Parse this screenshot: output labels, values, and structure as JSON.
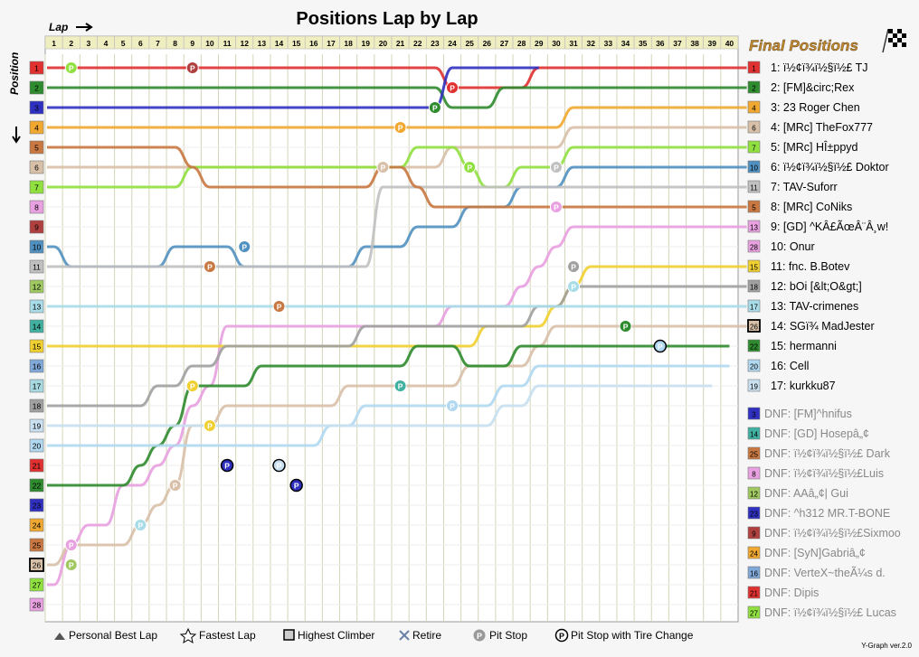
{
  "chart_data": {
    "type": "line",
    "title": "Positions Lap by Lap",
    "xlabel": "Lap",
    "ylabel": "Position",
    "laps": [
      1,
      2,
      3,
      4,
      5,
      6,
      7,
      8,
      9,
      10,
      11,
      12,
      13,
      14,
      15,
      16,
      17,
      18,
      19,
      20,
      21,
      22,
      23,
      24,
      25,
      26,
      27,
      28,
      29,
      30,
      31,
      32,
      33,
      34,
      35,
      36,
      37,
      38,
      39,
      40
    ],
    "grid_positions": [
      1,
      2,
      3,
      4,
      5,
      6,
      7,
      8,
      9,
      10,
      11,
      12,
      13,
      14,
      15,
      16,
      17,
      18,
      19,
      20,
      21,
      22,
      23,
      24,
      25,
      26,
      27,
      28
    ],
    "position_colors": [
      "#e03030",
      "#2e8b2e",
      "#3030c0",
      "#f0a830",
      "#c87840",
      "#d8c0a8",
      "#90e040",
      "#e8a0e0",
      "#b04040",
      "#5090c0",
      "#c0c0c0",
      "#a0c860",
      "#a8dce8",
      "#40b0a0",
      "#f0d030",
      "#80a8d8",
      "#a8d8e0",
      "#a0a0a0",
      "#c8e0f0",
      "#b0d8f0",
      "#e03030",
      "#2e8b2e",
      "#3030c0",
      "#f0a830",
      "#c87840",
      "#d8c0a8",
      "#90e040",
      "#e8a0e0"
    ],
    "final_title": "Final Positions",
    "final_positions": [
      {
        "pos": "1",
        "label": "1: ï½¢ï¾ï½§ï½£ TJ",
        "color": "#e03030"
      },
      {
        "pos": "2",
        "label": "2: [FM]&circ;Rex",
        "color": "#2e8b2e"
      },
      {
        "pos": "4",
        "label": "3: 23 Roger Chen",
        "color": "#f0a830"
      },
      {
        "pos": "6",
        "label": "4: [MRc] TheFox777",
        "color": "#d8c0a8"
      },
      {
        "pos": "7",
        "label": "5: [MRc] HÎ±ppyd",
        "color": "#90e040"
      },
      {
        "pos": "10",
        "label": "6: ï½¢ï¾ï½§ï½£ Doktor",
        "color": "#5090c0"
      },
      {
        "pos": "11",
        "label": "7: TAV-Suforr",
        "color": "#c0c0c0"
      },
      {
        "pos": "5",
        "label": "8: [MRc] CoNiks",
        "color": "#c87840"
      },
      {
        "pos": "13",
        "label": "9: [GD] ^KÂ£ÃœÂ¨Â¸w!",
        "color": "#e8a0e0"
      },
      {
        "pos": "28",
        "label": "10: Onur",
        "color": "#e8a0e0"
      },
      {
        "pos": "15",
        "label": "11: fnc. B.Botev",
        "color": "#f0d030"
      },
      {
        "pos": "18",
        "label": "12: bOi [&lt;O&gt;]",
        "color": "#a0a0a0"
      },
      {
        "pos": "17",
        "label": "13: TAV-crimenes",
        "color": "#a8dce8"
      },
      {
        "pos": "26",
        "label": "14: SGï¾ MadJester",
        "color": "#d8c0a8"
      },
      {
        "pos": "22",
        "label": "15: hermanni",
        "color": "#2e8b2e"
      },
      {
        "pos": "20",
        "label": "16: Cell",
        "color": "#b0d8f0"
      },
      {
        "pos": "19",
        "label": "17: kurkku87",
        "color": "#c8e0f0"
      }
    ],
    "dnf": [
      {
        "pos": "3",
        "label": "DNF: [FM]^hnifus",
        "color": "#3030c0"
      },
      {
        "pos": "14",
        "label": "DNF: [GD] Hosepâ„¢",
        "color": "#40b0a0"
      },
      {
        "pos": "25",
        "label": "DNF: ï½¢ï¾ï½§ï½£ Dark",
        "color": "#c87840"
      },
      {
        "pos": "8",
        "label": "DNF: ï½¢ï¾ï½§ï½£Luis",
        "color": "#e8a0e0"
      },
      {
        "pos": "12",
        "label": "DNF: AAâ„¢| Gui",
        "color": "#a0c860"
      },
      {
        "pos": "23",
        "label": "DNF: ^h312 MR.T-BONE",
        "color": "#3030c0"
      },
      {
        "pos": "9",
        "label": "DNF: ï½¢ï¾ï½§ï½£Sixmoo",
        "color": "#b04040"
      },
      {
        "pos": "24",
        "label": "DNF: [SyN]Gabriâ„¢",
        "color": "#f0a830"
      },
      {
        "pos": "16",
        "label": "DNF: VerteX~theÃ¼s d.",
        "color": "#80a8d8"
      },
      {
        "pos": "21",
        "label": "DNF: Dipis",
        "color": "#e03030"
      },
      {
        "pos": "27",
        "label": "DNF: ï½¢ï¾ï½§ï½£ Lucas",
        "color": "#90e040"
      }
    ],
    "series": [
      {
        "color": "#e03030",
        "positions": [
          1,
          1,
          1,
          1,
          1,
          1,
          1,
          1,
          1,
          1,
          1,
          1,
          1,
          1,
          1,
          1,
          1,
          1,
          1,
          1,
          1,
          1,
          1,
          2,
          2,
          2,
          2,
          2,
          1,
          1,
          1,
          1,
          1,
          1,
          1,
          1,
          1,
          1,
          1,
          1,
          1
        ]
      },
      {
        "color": "#2e8b2e",
        "positions": [
          2,
          2,
          2,
          2,
          2,
          2,
          2,
          2,
          2,
          2,
          2,
          2,
          2,
          2,
          2,
          2,
          2,
          2,
          2,
          2,
          2,
          2,
          2,
          3,
          3,
          3,
          2,
          2,
          2,
          2,
          2,
          2,
          2,
          2,
          2,
          2,
          2,
          2,
          2,
          2,
          2
        ]
      },
      {
        "color": "#3030c0",
        "positions": [
          3,
          3,
          3,
          3,
          3,
          3,
          3,
          3,
          3,
          3,
          3,
          3,
          3,
          3,
          3,
          3,
          3,
          3,
          3,
          3,
          3,
          3,
          3,
          1,
          1,
          1,
          1,
          1,
          1
        ]
      },
      {
        "color": "#f0a830",
        "positions": [
          4,
          4,
          4,
          4,
          4,
          4,
          4,
          4,
          4,
          4,
          4,
          4,
          4,
          4,
          4,
          4,
          4,
          4,
          4,
          4,
          4,
          4,
          4,
          4,
          4,
          4,
          4,
          4,
          4,
          4,
          3,
          3,
          3,
          3,
          3,
          3,
          3,
          3,
          3,
          3,
          3
        ]
      },
      {
        "color": "#d8c0a8",
        "positions": [
          6,
          6,
          6,
          6,
          6,
          6,
          6,
          6,
          6,
          6,
          6,
          6,
          6,
          6,
          6,
          6,
          6,
          6,
          6,
          6,
          6,
          6,
          6,
          5,
          5,
          5,
          5,
          5,
          5,
          5,
          4,
          4,
          4,
          4,
          4,
          4,
          4,
          4,
          4,
          4,
          4
        ]
      },
      {
        "color": "#90e040",
        "positions": [
          7,
          7,
          7,
          7,
          7,
          7,
          7,
          7,
          6,
          6,
          6,
          6,
          6,
          6,
          6,
          6,
          6,
          6,
          6,
          6,
          6,
          5,
          5,
          5,
          6,
          7,
          7,
          6,
          6,
          6,
          5,
          5,
          5,
          5,
          5,
          5,
          5,
          5,
          5,
          5,
          5
        ]
      },
      {
        "color": "#5090c0",
        "positions": [
          10,
          11,
          11,
          11,
          11,
          11,
          11,
          10,
          10,
          10,
          10,
          11,
          11,
          11,
          11,
          11,
          11,
          11,
          10,
          10,
          10,
          9,
          9,
          9,
          8,
          8,
          8,
          7,
          7,
          7,
          6,
          6,
          6,
          6,
          6,
          6,
          6,
          6,
          6,
          6,
          6
        ]
      },
      {
        "color": "#c0c0c0",
        "positions": [
          11,
          11,
          11,
          11,
          11,
          11,
          11,
          11,
          11,
          11,
          11,
          11,
          11,
          11,
          11,
          11,
          11,
          11,
          11,
          7,
          7,
          7,
          7,
          7,
          7,
          7,
          7,
          7,
          7,
          7,
          7,
          7,
          7,
          7,
          7,
          7,
          7,
          7,
          7,
          7,
          7
        ]
      },
      {
        "color": "#c87840",
        "positions": [
          5,
          5,
          5,
          5,
          5,
          5,
          5,
          5,
          6,
          7,
          7,
          7,
          7,
          7,
          7,
          7,
          7,
          7,
          7,
          6,
          6,
          7,
          8,
          8,
          8,
          8,
          8,
          8,
          8,
          8,
          8,
          8,
          8,
          8,
          8,
          8,
          8,
          8,
          8,
          8,
          8
        ]
      },
      {
        "color": "#e8a0e0",
        "positions": [
          27,
          25,
          24,
          24,
          22,
          22,
          21,
          20,
          18,
          17,
          14,
          14,
          14,
          14,
          14,
          14,
          14,
          14,
          14,
          14,
          14,
          14,
          14,
          13,
          13,
          13,
          13,
          12,
          11,
          10,
          9,
          9,
          9,
          9,
          9,
          9,
          9,
          9,
          9,
          9,
          9
        ]
      },
      {
        "color": "#f0d030",
        "positions": [
          15,
          15,
          15,
          15,
          15,
          15,
          15,
          15,
          15,
          15,
          15,
          15,
          15,
          15,
          15,
          15,
          15,
          15,
          15,
          15,
          15,
          15,
          15,
          15,
          15,
          14,
          14,
          14,
          14,
          13,
          12,
          11,
          11,
          11,
          11,
          11,
          11,
          11,
          11,
          11,
          11
        ]
      },
      {
        "color": "#a0a0a0",
        "positions": [
          18,
          18,
          18,
          18,
          18,
          18,
          17,
          17,
          16,
          16,
          15,
          15,
          15,
          15,
          15,
          15,
          15,
          15,
          14,
          14,
          14,
          14,
          14,
          14,
          14,
          14,
          14,
          14,
          13,
          13,
          12,
          12,
          12,
          12,
          12,
          12,
          12,
          12,
          12,
          12,
          12
        ]
      },
      {
        "color": "#a8dce8",
        "positions": [
          13,
          13,
          13,
          13,
          13,
          13,
          13,
          13,
          13,
          13,
          13,
          13,
          13,
          13,
          13,
          13,
          13,
          13,
          13,
          13,
          13,
          13,
          13,
          13,
          13,
          13,
          13,
          13,
          13,
          13,
          13,
          13,
          13,
          13,
          13,
          13,
          13,
          13,
          13,
          13,
          13
        ]
      },
      {
        "color": "#d8c0a8",
        "positions": [
          26,
          25,
          25,
          25,
          25,
          24,
          23,
          22,
          19,
          19,
          18,
          18,
          18,
          18,
          18,
          18,
          18,
          17,
          17,
          17,
          17,
          17,
          17,
          17,
          16,
          16,
          16,
          16,
          15,
          14,
          14,
          14,
          14,
          14,
          14,
          14,
          14,
          14,
          14,
          14,
          14
        ]
      },
      {
        "color": "#2e8b2e",
        "positions": [
          22,
          22,
          22,
          22,
          22,
          21,
          20,
          19,
          17,
          17,
          17,
          17,
          16,
          16,
          16,
          16,
          16,
          16,
          16,
          16,
          16,
          15,
          15,
          15,
          16,
          16,
          16,
          15,
          15,
          15,
          15,
          15,
          15,
          15,
          15,
          15,
          15,
          15,
          15,
          15
        ]
      },
      {
        "color": "#b0d8f0",
        "positions": [
          20,
          20,
          20,
          20,
          20,
          20,
          20,
          20,
          20,
          20,
          20,
          20,
          20,
          20,
          20,
          20,
          19,
          19,
          18,
          18,
          18,
          18,
          18,
          18,
          18,
          18,
          17,
          17,
          16,
          16,
          16,
          16,
          16,
          16,
          16,
          16,
          16,
          16,
          16,
          16
        ]
      },
      {
        "color": "#c8e0f0",
        "positions": [
          19,
          19,
          19,
          19,
          19,
          19,
          19,
          19,
          19,
          19,
          19,
          19,
          19,
          19,
          19,
          19,
          19,
          19,
          19,
          19,
          19,
          19,
          19,
          19,
          19,
          19,
          18,
          18,
          17,
          17,
          17,
          17,
          17,
          17,
          17,
          17,
          17,
          17,
          17
        ]
      }
    ],
    "pit_stops": [
      {
        "lap": 2,
        "pos": 1,
        "color": "#90e040",
        "tire": false
      },
      {
        "lap": 9,
        "pos": 1,
        "color": "#b04040",
        "tire": false
      },
      {
        "lap": 24,
        "pos": 2,
        "color": "#e03030",
        "tire": false
      },
      {
        "lap": 23,
        "pos": 3,
        "color": "#2e8b2e",
        "tire": false
      },
      {
        "lap": 21,
        "pos": 4,
        "color": "#f0a830",
        "tire": false
      },
      {
        "lap": 20,
        "pos": 6,
        "color": "#d8c0a8",
        "tire": false
      },
      {
        "lap": 25,
        "pos": 6,
        "color": "#90e040",
        "tire": false
      },
      {
        "lap": 30,
        "pos": 6,
        "color": "#c0c0c0",
        "tire": false
      },
      {
        "lap": 30,
        "pos": 8,
        "color": "#e8a0e0",
        "tire": false
      },
      {
        "lap": 12,
        "pos": 10,
        "color": "#5090c0",
        "tire": false
      },
      {
        "lap": 10,
        "pos": 11,
        "color": "#c87840",
        "tire": false
      },
      {
        "lap": 14,
        "pos": 13,
        "color": "#c87840",
        "tire": false
      },
      {
        "lap": 31,
        "pos": 11,
        "color": "#a0a0a0",
        "tire": false
      },
      {
        "lap": 31,
        "pos": 12,
        "color": "#a8dce8",
        "tire": false
      },
      {
        "lap": 21,
        "pos": 17,
        "color": "#40b0a0",
        "tire": false
      },
      {
        "lap": 24,
        "pos": 18,
        "color": "#b0d8f0",
        "tire": false
      },
      {
        "lap": 34,
        "pos": 14,
        "color": "#2e8b2e",
        "tire": false
      },
      {
        "lap": 36,
        "pos": 15,
        "color": "#b0d8f0",
        "tire": true
      },
      {
        "lap": 9,
        "pos": 17,
        "color": "#f0d030",
        "tire": false
      },
      {
        "lap": 10,
        "pos": 19,
        "color": "#f0d030",
        "tire": false
      },
      {
        "lap": 11,
        "pos": 21,
        "color": "#3030c0",
        "tire": true
      },
      {
        "lap": 14,
        "pos": 21,
        "color": "#c8e0f0",
        "tire": true
      },
      {
        "lap": 15,
        "pos": 22,
        "color": "#3030c0",
        "tire": true
      },
      {
        "lap": 8,
        "pos": 22,
        "color": "#d8c0a8",
        "tire": false
      },
      {
        "lap": 6,
        "pos": 24,
        "color": "#a8dce8",
        "tire": false
      },
      {
        "lap": 2,
        "pos": 25,
        "color": "#e8a0e0",
        "tire": false
      },
      {
        "lap": 2,
        "pos": 26,
        "color": "#a0c860",
        "tire": false
      }
    ],
    "legend": {
      "best": "Personal Best Lap",
      "fastest": "Fastest Lap",
      "climber": "Highest Climber",
      "retire": "Retire",
      "pit": "Pit Stop",
      "pit_tire": "Pit Stop with Tire Change"
    },
    "version": "Y-Graph ver.2.0"
  }
}
